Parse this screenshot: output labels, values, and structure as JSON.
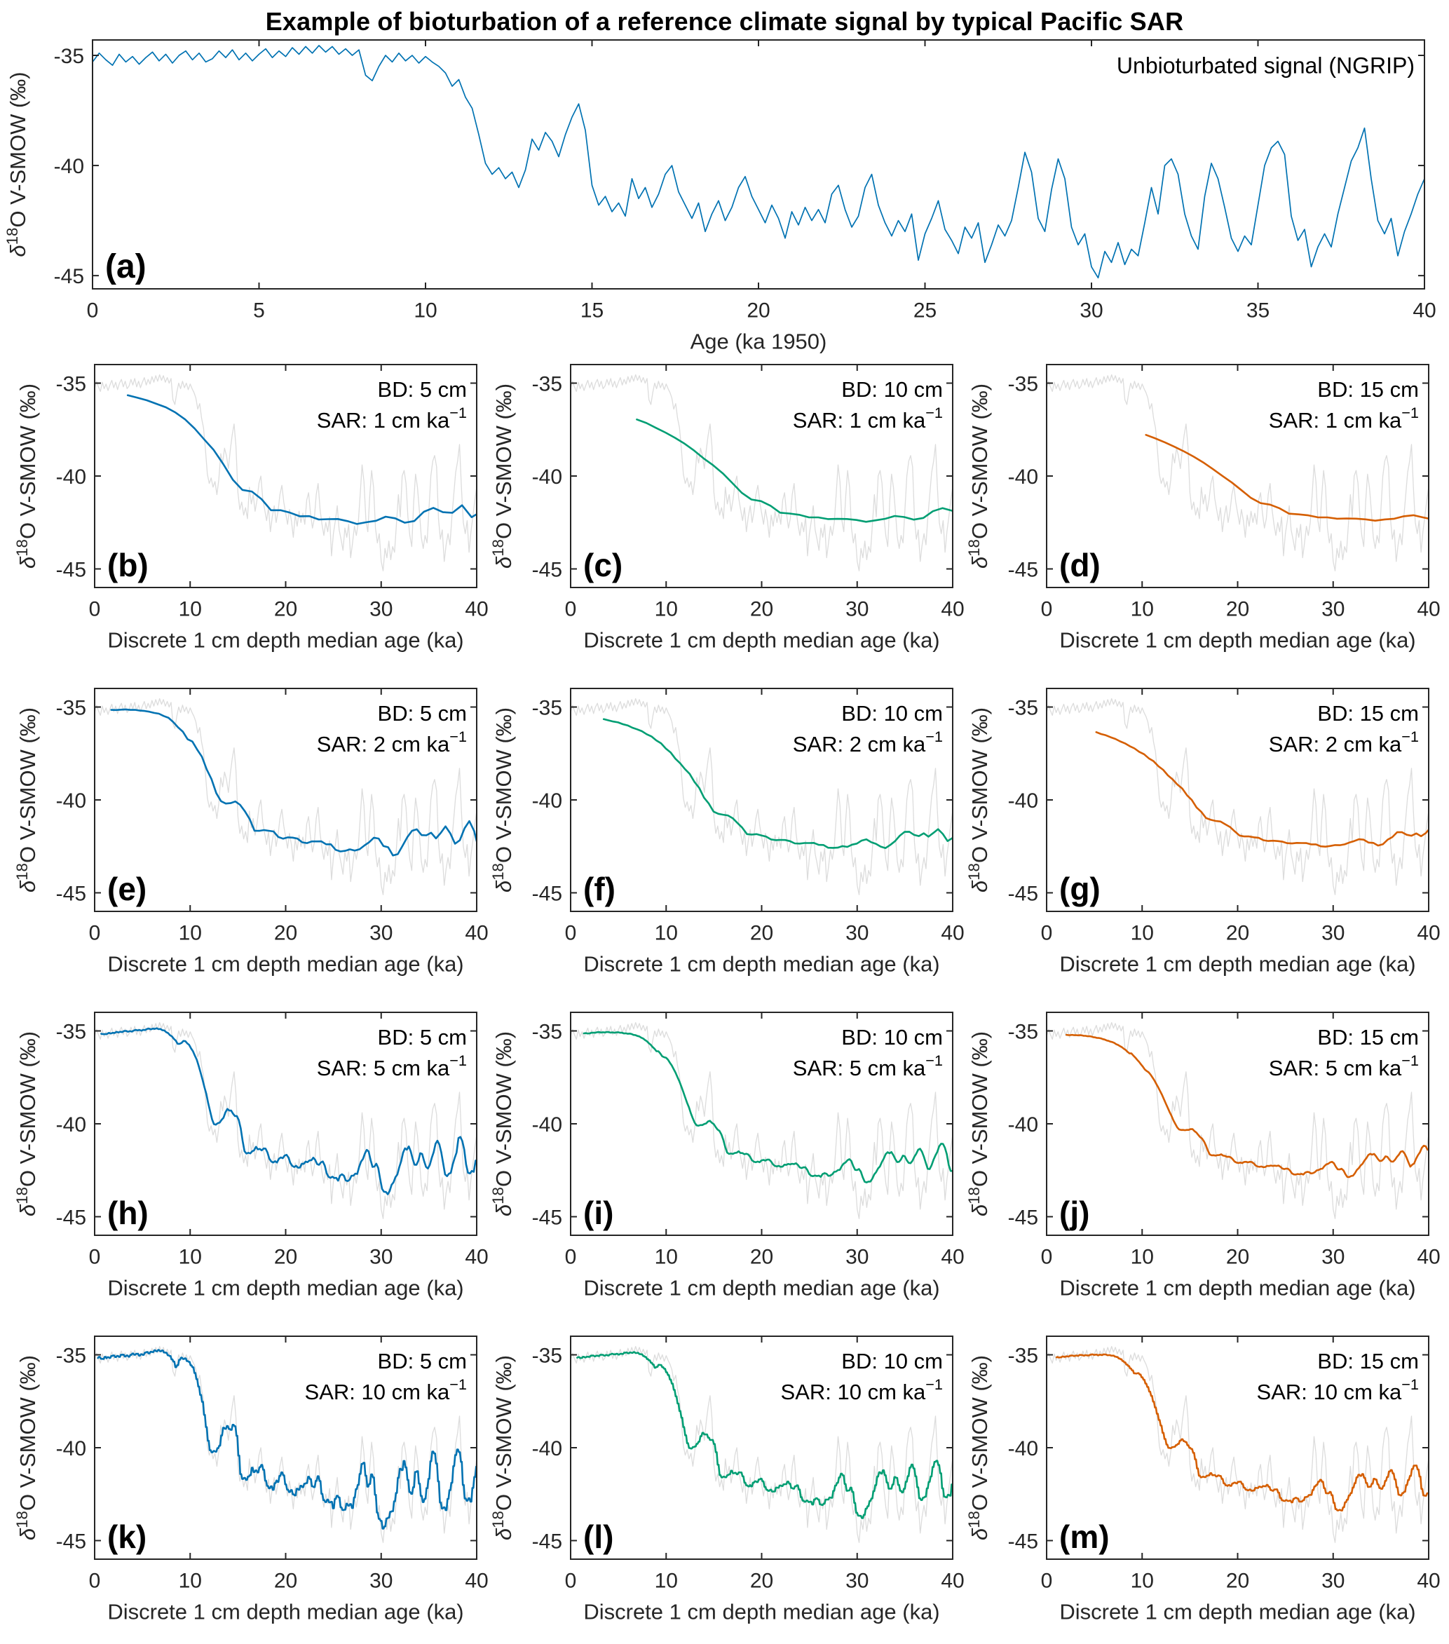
{
  "title": "Example of bioturbation of a reference climate signal by typical Pacific SAR",
  "colors": {
    "line_blue": "#0072B2",
    "line_green": "#009E73",
    "line_orange": "#D55E00",
    "reference_gray": "#DCDCDC",
    "axis": "#252525",
    "text": "#262626",
    "annotation_text": "#000000"
  },
  "chart_data": {
    "type": "line",
    "reference": {
      "name": "Unbioturbated signal (NGRIP)",
      "x_start": 0,
      "x_step": 0.2,
      "x_unit": "ka",
      "y_unit": "permil V-SMOW",
      "y": [
        -35.3,
        -34.9,
        -35.2,
        -35.45,
        -34.95,
        -35.3,
        -35.05,
        -35.4,
        -35.1,
        -34.85,
        -35.25,
        -34.95,
        -35.35,
        -35.0,
        -34.8,
        -35.2,
        -34.9,
        -35.3,
        -35.15,
        -34.8,
        -35.1,
        -34.75,
        -35.2,
        -34.9,
        -35.25,
        -34.95,
        -34.7,
        -35.1,
        -34.8,
        -35.05,
        -34.65,
        -34.95,
        -34.6,
        -34.9,
        -34.55,
        -34.85,
        -34.6,
        -34.95,
        -34.7,
        -35.0,
        -34.75,
        -35.9,
        -36.15,
        -35.5,
        -35.0,
        -35.3,
        -34.9,
        -35.25,
        -35.0,
        -35.35,
        -35.05,
        -35.3,
        -35.5,
        -35.8,
        -36.4,
        -36.1,
        -36.9,
        -37.4,
        -38.6,
        -39.9,
        -40.4,
        -40.1,
        -40.6,
        -40.3,
        -41.0,
        -40.2,
        -38.8,
        -39.3,
        -38.5,
        -38.9,
        -39.6,
        -38.6,
        -37.8,
        -37.2,
        -38.4,
        -40.9,
        -41.8,
        -41.4,
        -42.1,
        -41.7,
        -42.3,
        -40.6,
        -41.5,
        -41.0,
        -41.9,
        -41.3,
        -40.4,
        -40.0,
        -41.2,
        -41.8,
        -42.4,
        -41.7,
        -43.0,
        -42.2,
        -41.6,
        -42.5,
        -41.9,
        -41.0,
        -40.5,
        -41.4,
        -42.0,
        -42.6,
        -41.8,
        -42.4,
        -43.3,
        -42.1,
        -42.7,
        -41.9,
        -42.5,
        -42.0,
        -42.6,
        -41.3,
        -40.9,
        -42.0,
        -42.8,
        -42.3,
        -41.0,
        -40.4,
        -41.8,
        -42.6,
        -43.2,
        -42.5,
        -43.0,
        -42.2,
        -44.3,
        -43.1,
        -42.4,
        -41.6,
        -42.9,
        -43.4,
        -44.0,
        -42.8,
        -43.3,
        -42.6,
        -44.4,
        -43.6,
        -42.7,
        -43.2,
        -42.5,
        -41.0,
        -39.4,
        -40.3,
        -42.4,
        -43.0,
        -41.1,
        -39.7,
        -40.6,
        -42.8,
        -43.6,
        -43.1,
        -44.6,
        -45.1,
        -43.9,
        -44.4,
        -43.5,
        -44.5,
        -43.8,
        -44.1,
        -42.6,
        -41.0,
        -42.2,
        -40.0,
        -39.7,
        -40.4,
        -42.2,
        -43.2,
        -43.8,
        -41.4,
        -39.9,
        -40.6,
        -41.9,
        -43.3,
        -43.9,
        -43.2,
        -43.6,
        -41.8,
        -40.0,
        -39.2,
        -38.9,
        -39.5,
        -42.3,
        -43.4,
        -42.9,
        -44.6,
        -43.7,
        -43.1,
        -43.7,
        -42.2,
        -41.0,
        -39.8,
        -39.2,
        -38.3,
        -40.6,
        -42.5,
        -43.1,
        -42.4,
        -44.1,
        -43.0,
        -42.2,
        -41.3,
        -40.6
      ]
    },
    "main_panel": {
      "label": "(a)",
      "annotation": "Unbioturbated signal (NGRIP)",
      "xlabel": "Age (ka 1950)",
      "xlim": [
        0,
        40
      ],
      "ylim": [
        -45.6,
        -34.3
      ],
      "xticks": [
        0,
        5,
        10,
        15,
        20,
        25,
        30,
        35,
        40
      ],
      "yticks": [
        -35,
        -40,
        -45
      ],
      "line_color_key": "line_blue"
    },
    "panel_axes": {
      "xlabel": "Discrete 1 cm depth median age (ka)",
      "xlim": [
        0,
        40
      ],
      "ylim": [
        -46,
        -34
      ],
      "xticks": [
        0,
        10,
        20,
        30,
        40
      ],
      "yticks": [
        -35,
        -40,
        -45
      ]
    },
    "ylabel_parts": {
      "delta": "δ",
      "superscript": "18",
      "rest": "O V-SMOW (‰)"
    },
    "bioturbated_series_rule": "Each colored curve is the reference signal mixed by an exponential bioturbation filter: time constant tau_ka = bd_cm / sar_cm_per_ka; a point with median age t averages reference values of age a >= t - tau*ln2 with weight exp(-(a-(t-tau*ln2))/tau); points are sampled every 1/sar_cm_per_ka ka (one per 1 cm slice).",
    "panels": [
      {
        "label": "(b)",
        "bd_cm": 5,
        "sar_cm_per_ka": 1,
        "color_key": "line_blue",
        "bd_label": "BD: 5 cm",
        "sar_label": "SAR: 1 cm ka",
        "sar_exponent": "−1"
      },
      {
        "label": "(c)",
        "bd_cm": 10,
        "sar_cm_per_ka": 1,
        "color_key": "line_green",
        "bd_label": "BD: 10 cm",
        "sar_label": "SAR: 1 cm ka",
        "sar_exponent": "−1"
      },
      {
        "label": "(d)",
        "bd_cm": 15,
        "sar_cm_per_ka": 1,
        "color_key": "line_orange",
        "bd_label": "BD: 15 cm",
        "sar_label": "SAR: 1 cm ka",
        "sar_exponent": "−1"
      },
      {
        "label": "(e)",
        "bd_cm": 5,
        "sar_cm_per_ka": 2,
        "color_key": "line_blue",
        "bd_label": "BD: 5 cm",
        "sar_label": "SAR: 2 cm ka",
        "sar_exponent": "−1"
      },
      {
        "label": "(f)",
        "bd_cm": 10,
        "sar_cm_per_ka": 2,
        "color_key": "line_green",
        "bd_label": "BD: 10 cm",
        "sar_label": "SAR: 2 cm ka",
        "sar_exponent": "−1"
      },
      {
        "label": "(g)",
        "bd_cm": 15,
        "sar_cm_per_ka": 2,
        "color_key": "line_orange",
        "bd_label": "BD: 15 cm",
        "sar_label": "SAR: 2 cm ka",
        "sar_exponent": "−1"
      },
      {
        "label": "(h)",
        "bd_cm": 5,
        "sar_cm_per_ka": 5,
        "color_key": "line_blue",
        "bd_label": "BD: 5 cm",
        "sar_label": "SAR: 5 cm ka",
        "sar_exponent": "−1"
      },
      {
        "label": "(i)",
        "bd_cm": 10,
        "sar_cm_per_ka": 5,
        "color_key": "line_green",
        "bd_label": "BD: 10 cm",
        "sar_label": "SAR: 5 cm ka",
        "sar_exponent": "−1"
      },
      {
        "label": "(j)",
        "bd_cm": 15,
        "sar_cm_per_ka": 5,
        "color_key": "line_orange",
        "bd_label": "BD: 15 cm",
        "sar_label": "SAR: 5 cm ka",
        "sar_exponent": "−1"
      },
      {
        "label": "(k)",
        "bd_cm": 5,
        "sar_cm_per_ka": 10,
        "color_key": "line_blue",
        "bd_label": "BD: 5 cm",
        "sar_label": "SAR: 10 cm ka",
        "sar_exponent": "−1"
      },
      {
        "label": "(l)",
        "bd_cm": 10,
        "sar_cm_per_ka": 10,
        "color_key": "line_green",
        "bd_label": "BD: 10 cm",
        "sar_label": "SAR: 10 cm ka",
        "sar_exponent": "−1"
      },
      {
        "label": "(m)",
        "bd_cm": 15,
        "sar_cm_per_ka": 10,
        "color_key": "line_orange",
        "bd_label": "BD: 15 cm",
        "sar_label": "SAR: 10 cm ka",
        "sar_exponent": "−1"
      }
    ]
  }
}
